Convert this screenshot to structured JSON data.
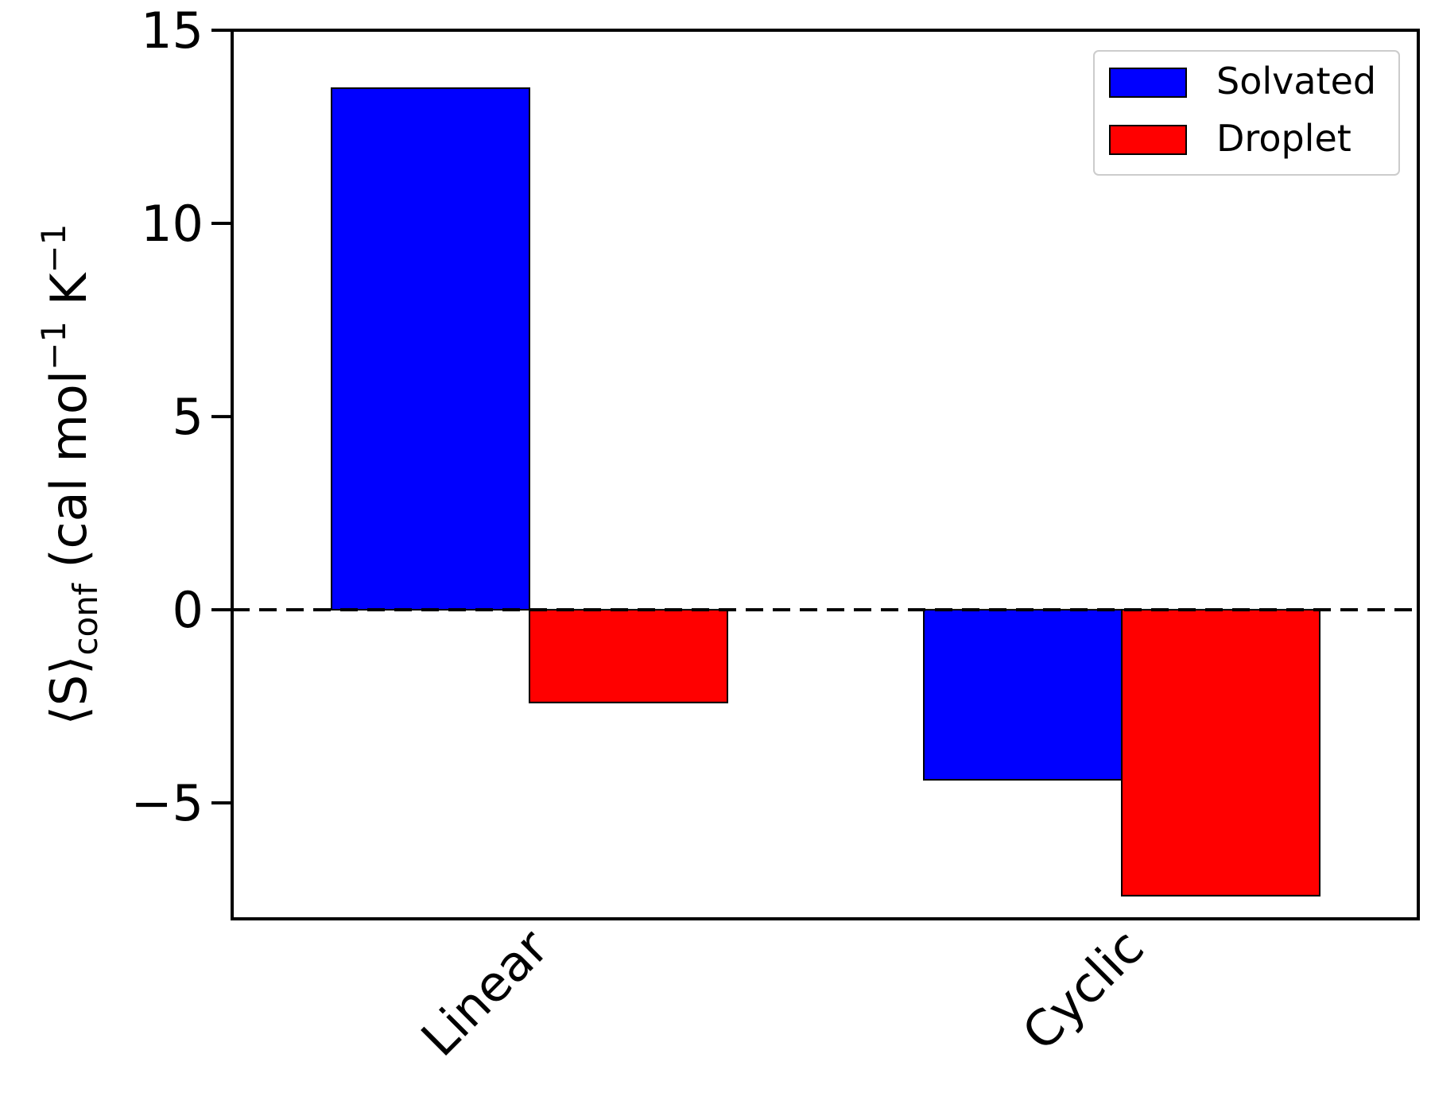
{
  "chart_data": {
    "type": "bar",
    "categories": [
      "Linear",
      "Cyclic"
    ],
    "series": [
      {
        "name": "Solvated",
        "color": "#0000ff",
        "values": [
          13.5,
          -4.4
        ]
      },
      {
        "name": "Droplet",
        "color": "#ff0000",
        "values": [
          -2.4,
          -7.4
        ]
      }
    ],
    "ylim": [
      -8,
      15
    ],
    "yticks": [
      -5,
      0,
      5,
      10,
      15
    ],
    "ytick_labels": [
      "−5",
      "0",
      "5",
      "10",
      "15"
    ],
    "ylabel": {
      "main": "⟨S⟩",
      "sub": "conf",
      "units": " (cal mol",
      "exp1": "−1",
      "units2": " K",
      "exp2": "−1"
    },
    "legend_position": "top-right",
    "zero_line": "dashed"
  }
}
